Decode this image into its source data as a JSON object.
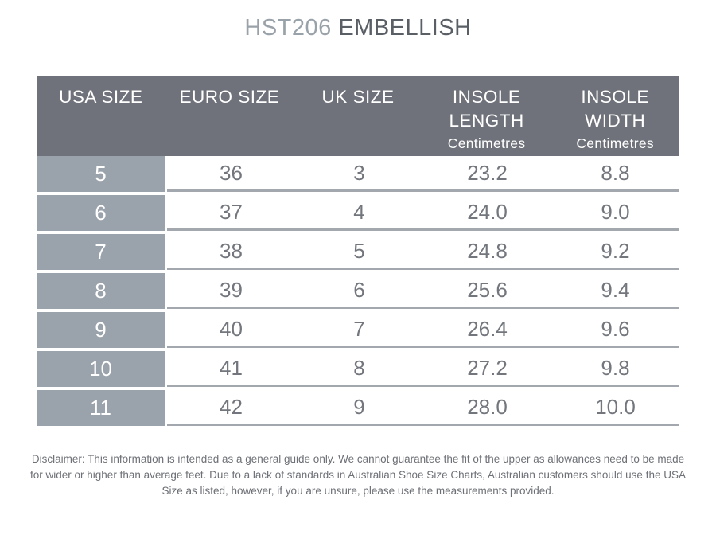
{
  "title": {
    "code": "HST206",
    "name": "EMBELLISH"
  },
  "table": {
    "columns": [
      {
        "label": "USA SIZE",
        "sub": ""
      },
      {
        "label": "EURO SIZE",
        "sub": ""
      },
      {
        "label": "UK SIZE",
        "sub": ""
      },
      {
        "label": "INSOLE\nLENGTH",
        "sub": "Centimetres"
      },
      {
        "label": "INSOLE\nWIDTH",
        "sub": "Centimetres"
      }
    ],
    "rows": [
      [
        "5",
        "36",
        "3",
        "23.2",
        "8.8"
      ],
      [
        "6",
        "37",
        "4",
        "24.0",
        "9.0"
      ],
      [
        "7",
        "38",
        "5",
        "24.8",
        "9.2"
      ],
      [
        "8",
        "39",
        "6",
        "25.6",
        "9.4"
      ],
      [
        "9",
        "40",
        "7",
        "26.4",
        "9.6"
      ],
      [
        "10",
        "41",
        "8",
        "27.2",
        "9.8"
      ],
      [
        "11",
        "42",
        "9",
        "28.0",
        "10.0"
      ]
    ]
  },
  "disclaimer": "Disclaimer: This information is intended as a general guide only. We cannot guarantee the fit of the upper as allowances need to be made for wider or higher than average feet. Due to a lack of standards in Australian Shoe Size Charts, Australian customers should use the USA Size as listed, however, if you are unsure, please use the measurements provided.",
  "colors": {
    "header_background": "#6f727a",
    "header_text": "#ffffff",
    "usa_column_background": "#9aa2ab",
    "usa_column_text": "#ffffff",
    "row_divider": "#a2a8ae",
    "data_text": "#73777d",
    "title_code_text": "#9aa2a9",
    "title_name_text": "#5a5f66",
    "disclaimer_text": "#6d7076",
    "page_background": "#ffffff"
  },
  "chart_data": {
    "type": "table",
    "title": "HST206 EMBELLISH",
    "categories": [
      "USA SIZE",
      "EURO SIZE",
      "UK SIZE",
      "INSOLE LENGTH Centimetres",
      "INSOLE WIDTH Centimetres"
    ],
    "series": [
      {
        "name": "USA SIZE",
        "values": [
          5,
          6,
          7,
          8,
          9,
          10,
          11
        ]
      },
      {
        "name": "EURO SIZE",
        "values": [
          36,
          37,
          38,
          39,
          40,
          41,
          42
        ]
      },
      {
        "name": "UK SIZE",
        "values": [
          3,
          4,
          5,
          6,
          7,
          8,
          9
        ]
      },
      {
        "name": "INSOLE LENGTH Centimetres",
        "values": [
          23.2,
          24.0,
          24.8,
          25.6,
          26.4,
          27.2,
          28.0
        ]
      },
      {
        "name": "INSOLE WIDTH Centimetres",
        "values": [
          8.8,
          9.0,
          9.2,
          9.4,
          9.6,
          9.8,
          10.0
        ]
      }
    ]
  }
}
